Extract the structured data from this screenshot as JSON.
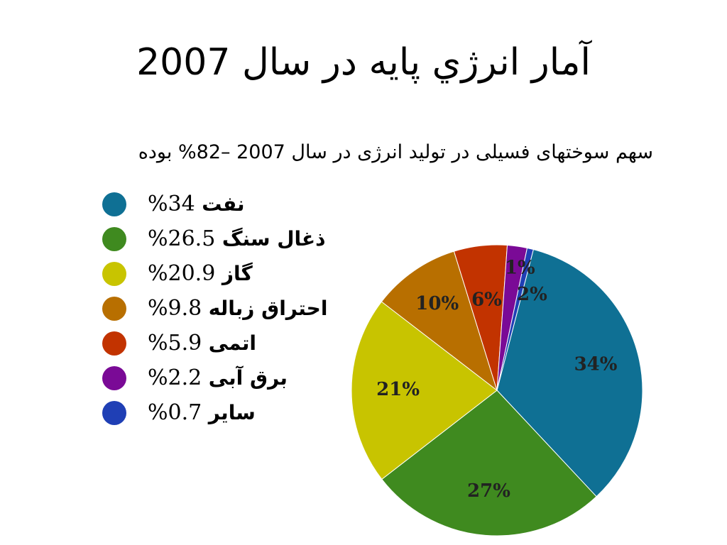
{
  "slide": {
    "title": "آمار انرژي پايه در سال 2007",
    "subtitle": "سهم سوختهای فسیلی در تولید انرژی در سال 2007 –82% بوده"
  },
  "legend": [
    {
      "label": "نفت",
      "text": "%34",
      "color": "#0f7094"
    },
    {
      "label": "ذغال سنگ",
      "text": "%26.5",
      "color": "#3f8a1f"
    },
    {
      "label": "گاز",
      "text": "%20.9",
      "color": "#c8c400"
    },
    {
      "label": "احتراق زباله",
      "text": "%9.8",
      "color": "#b86f00"
    },
    {
      "label": "اتمی",
      "text": "%5.9",
      "color": "#c23300"
    },
    {
      "label": "برق آبی",
      "text": "%2.2",
      "color": "#7a0a96"
    },
    {
      "label": "سایر",
      "text": "%0.7",
      "color": "#1f3fb5"
    }
  ],
  "chart_data": {
    "type": "pie",
    "categories": [
      "نفت",
      "ذغال سنگ",
      "گاز",
      "احتراق زباله",
      "اتمی",
      "برق آبی",
      "سایر"
    ],
    "values": [
      34,
      26.5,
      20.9,
      9.8,
      5.9,
      2.2,
      0.7
    ],
    "slice_labels": [
      "34%",
      "27%",
      "21%",
      "10%",
      "6%",
      "2%",
      "1%"
    ],
    "colors": [
      "#0f7094",
      "#3f8a1f",
      "#c8c400",
      "#b86f00",
      "#c23300",
      "#7a0a96",
      "#1f3fb5"
    ]
  }
}
